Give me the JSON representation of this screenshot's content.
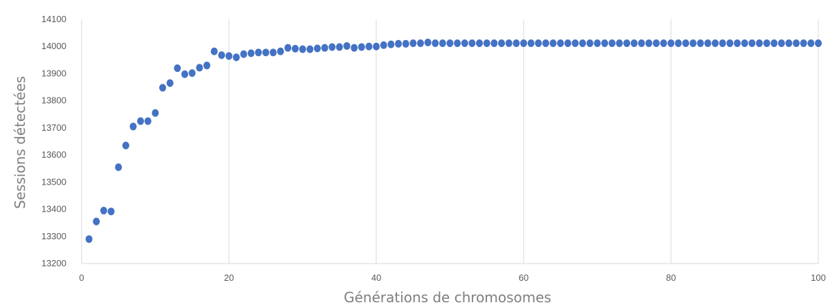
{
  "chart_data": {
    "type": "scatter",
    "xlabel": "Générations de chromosomes",
    "ylabel": "Sessions détectées",
    "xlim": [
      0,
      100
    ],
    "ylim": [
      13200,
      14100
    ],
    "xticks": [
      0,
      20,
      40,
      60,
      80,
      100
    ],
    "yticks": [
      13200,
      13300,
      13400,
      13500,
      13600,
      13700,
      13800,
      13900,
      14000,
      14100
    ],
    "grid": "vertical",
    "marker_color": "#4472c4",
    "series": [
      {
        "x": [
          1,
          2,
          3,
          4,
          5,
          6,
          7,
          8,
          9,
          10,
          11,
          12,
          13,
          14,
          15,
          16,
          17,
          18,
          19,
          20,
          21,
          22,
          23,
          24,
          25,
          26,
          27,
          28,
          29,
          30,
          31,
          32,
          33,
          34,
          35,
          36,
          37,
          38,
          39,
          40,
          41,
          42,
          43,
          44,
          45,
          46,
          47,
          48,
          49,
          50,
          51,
          52,
          53,
          54,
          55,
          56,
          57,
          58,
          59,
          60,
          61,
          62,
          63,
          64,
          65,
          66,
          67,
          68,
          69,
          70,
          71,
          72,
          73,
          74,
          75,
          76,
          77,
          78,
          79,
          80,
          81,
          82,
          83,
          84,
          85,
          86,
          87,
          88,
          89,
          90,
          91,
          92,
          93,
          94,
          95,
          96,
          97,
          98,
          99,
          100
        ],
        "y": [
          13290,
          13355,
          13395,
          13392,
          13555,
          13635,
          13705,
          13725,
          13725,
          13755,
          13848,
          13865,
          13920,
          13898,
          13902,
          13922,
          13930,
          13982,
          13968,
          13965,
          13960,
          13972,
          13975,
          13978,
          13978,
          13978,
          13982,
          13995,
          13992,
          13990,
          13990,
          13993,
          13995,
          13998,
          13998,
          14002,
          13995,
          13998,
          14000,
          14000,
          14005,
          14008,
          14010,
          14010,
          14012,
          14012,
          14015,
          14012,
          14012,
          14012,
          14012,
          14012,
          14012,
          14012,
          14012,
          14012,
          14012,
          14012,
          14012,
          14012,
          14012,
          14012,
          14012,
          14012,
          14012,
          14012,
          14012,
          14012,
          14012,
          14012,
          14012,
          14012,
          14012,
          14012,
          14012,
          14012,
          14012,
          14012,
          14012,
          14012,
          14012,
          14012,
          14012,
          14012,
          14012,
          14012,
          14012,
          14012,
          14012,
          14012,
          14012,
          14012,
          14012,
          14012,
          14012,
          14012,
          14012,
          14012,
          14012,
          14012
        ]
      }
    ]
  }
}
